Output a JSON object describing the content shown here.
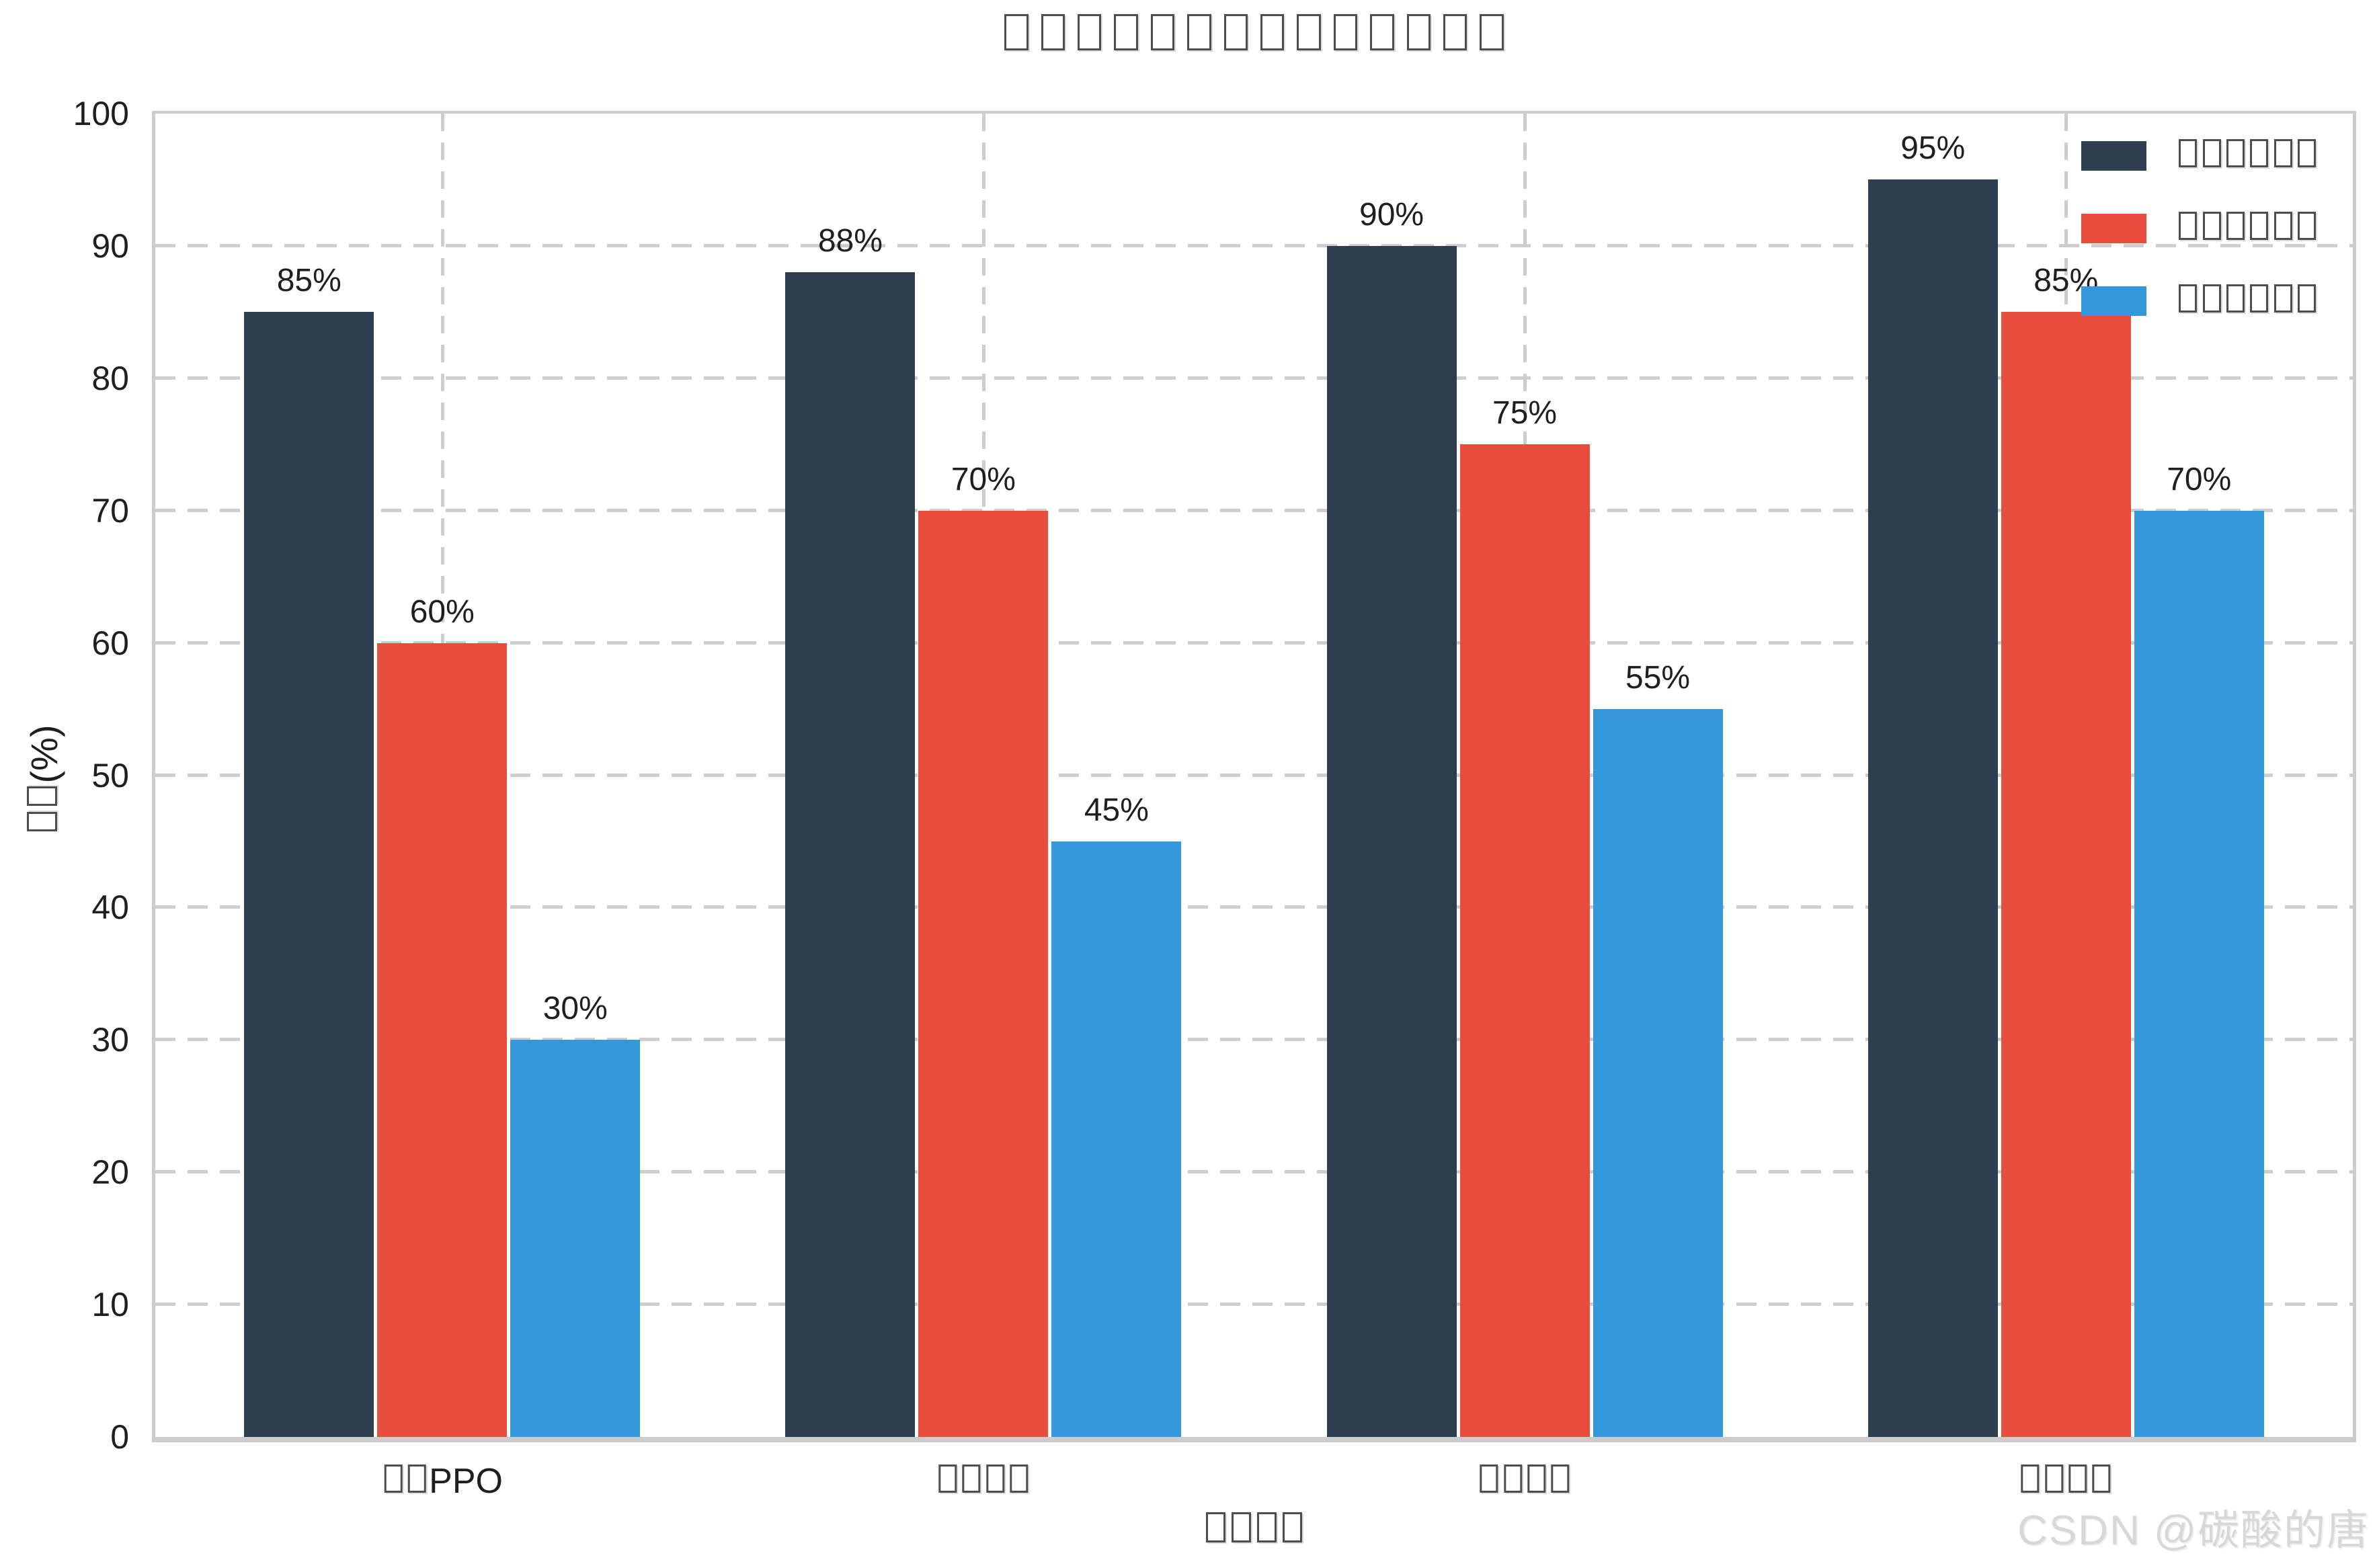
{
  "title": "□□□□□□□□□□□□□□",
  "watermark": "CSDN @碳酸的唐",
  "colors": {
    "series_dark": "#2C3E50",
    "series_red": "#E74C3C",
    "series_blue": "#3498DB",
    "grid": "#CCCCCC",
    "spine": "#CCCCCC",
    "text": "#1F1F1F",
    "watermark_text": "#D8D8D8"
  },
  "chart_data": {
    "type": "bar",
    "title": "□□□□□□□□□□□□□□",
    "xlabel": "□□□□",
    "ylabel": "□□(%)",
    "categories": [
      "□□PPO",
      "□□□□",
      "□□□□",
      "□□□□"
    ],
    "series": [
      {
        "name": "□□□□□□",
        "color": "#2C3E50",
        "values": [
          85,
          88,
          90,
          95
        ]
      },
      {
        "name": "□□□□□□",
        "color": "#E74C3C",
        "values": [
          60,
          70,
          75,
          85
        ]
      },
      {
        "name": "□□□□□□",
        "color": "#3498DB",
        "values": [
          30,
          45,
          55,
          70
        ]
      }
    ],
    "value_label_suffix": "%",
    "ylim": [
      0,
      100
    ],
    "yticks": [
      0,
      10,
      20,
      30,
      40,
      50,
      60,
      70,
      80,
      90,
      100
    ],
    "grid": "dashed",
    "legend_position": "upper-right"
  }
}
